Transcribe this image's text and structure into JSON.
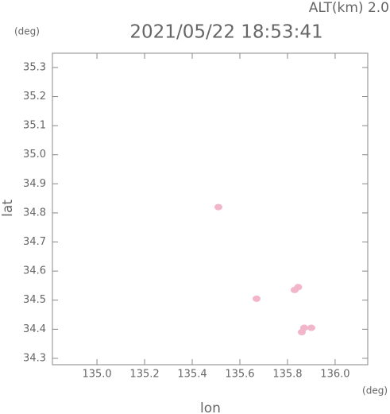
{
  "chart_data": {
    "type": "scatter",
    "title": "2021/05/22 18:53:41",
    "subtitle": "ALT(km) 2.0",
    "y_unit": "(deg)",
    "x_unit": "(deg)",
    "xlabel": "lon",
    "ylabel": "lat",
    "xlim": [
      134.813,
      136.137
    ],
    "ylim": [
      34.278,
      35.349
    ],
    "xticks": [
      {
        "value": 135,
        "label": "135.0"
      },
      135.2,
      135.4,
      135.6,
      135.8,
      {
        "value": 136,
        "label": "136.0"
      }
    ],
    "yticks": [
      35.3,
      35.2,
      35.1,
      {
        "value": 35,
        "label": "35.0"
      },
      34.9,
      34.8,
      34.7,
      34.6,
      34.5,
      34.4,
      34.3
    ],
    "series": [
      {
        "color": "#f2b5c9",
        "x": [
          135.51,
          135.67,
          135.83,
          135.845,
          135.87,
          135.9,
          135.86
        ],
        "values": [
          34.82,
          34.505,
          34.535,
          34.545,
          34.405,
          34.405,
          34.39
        ]
      }
    ]
  }
}
